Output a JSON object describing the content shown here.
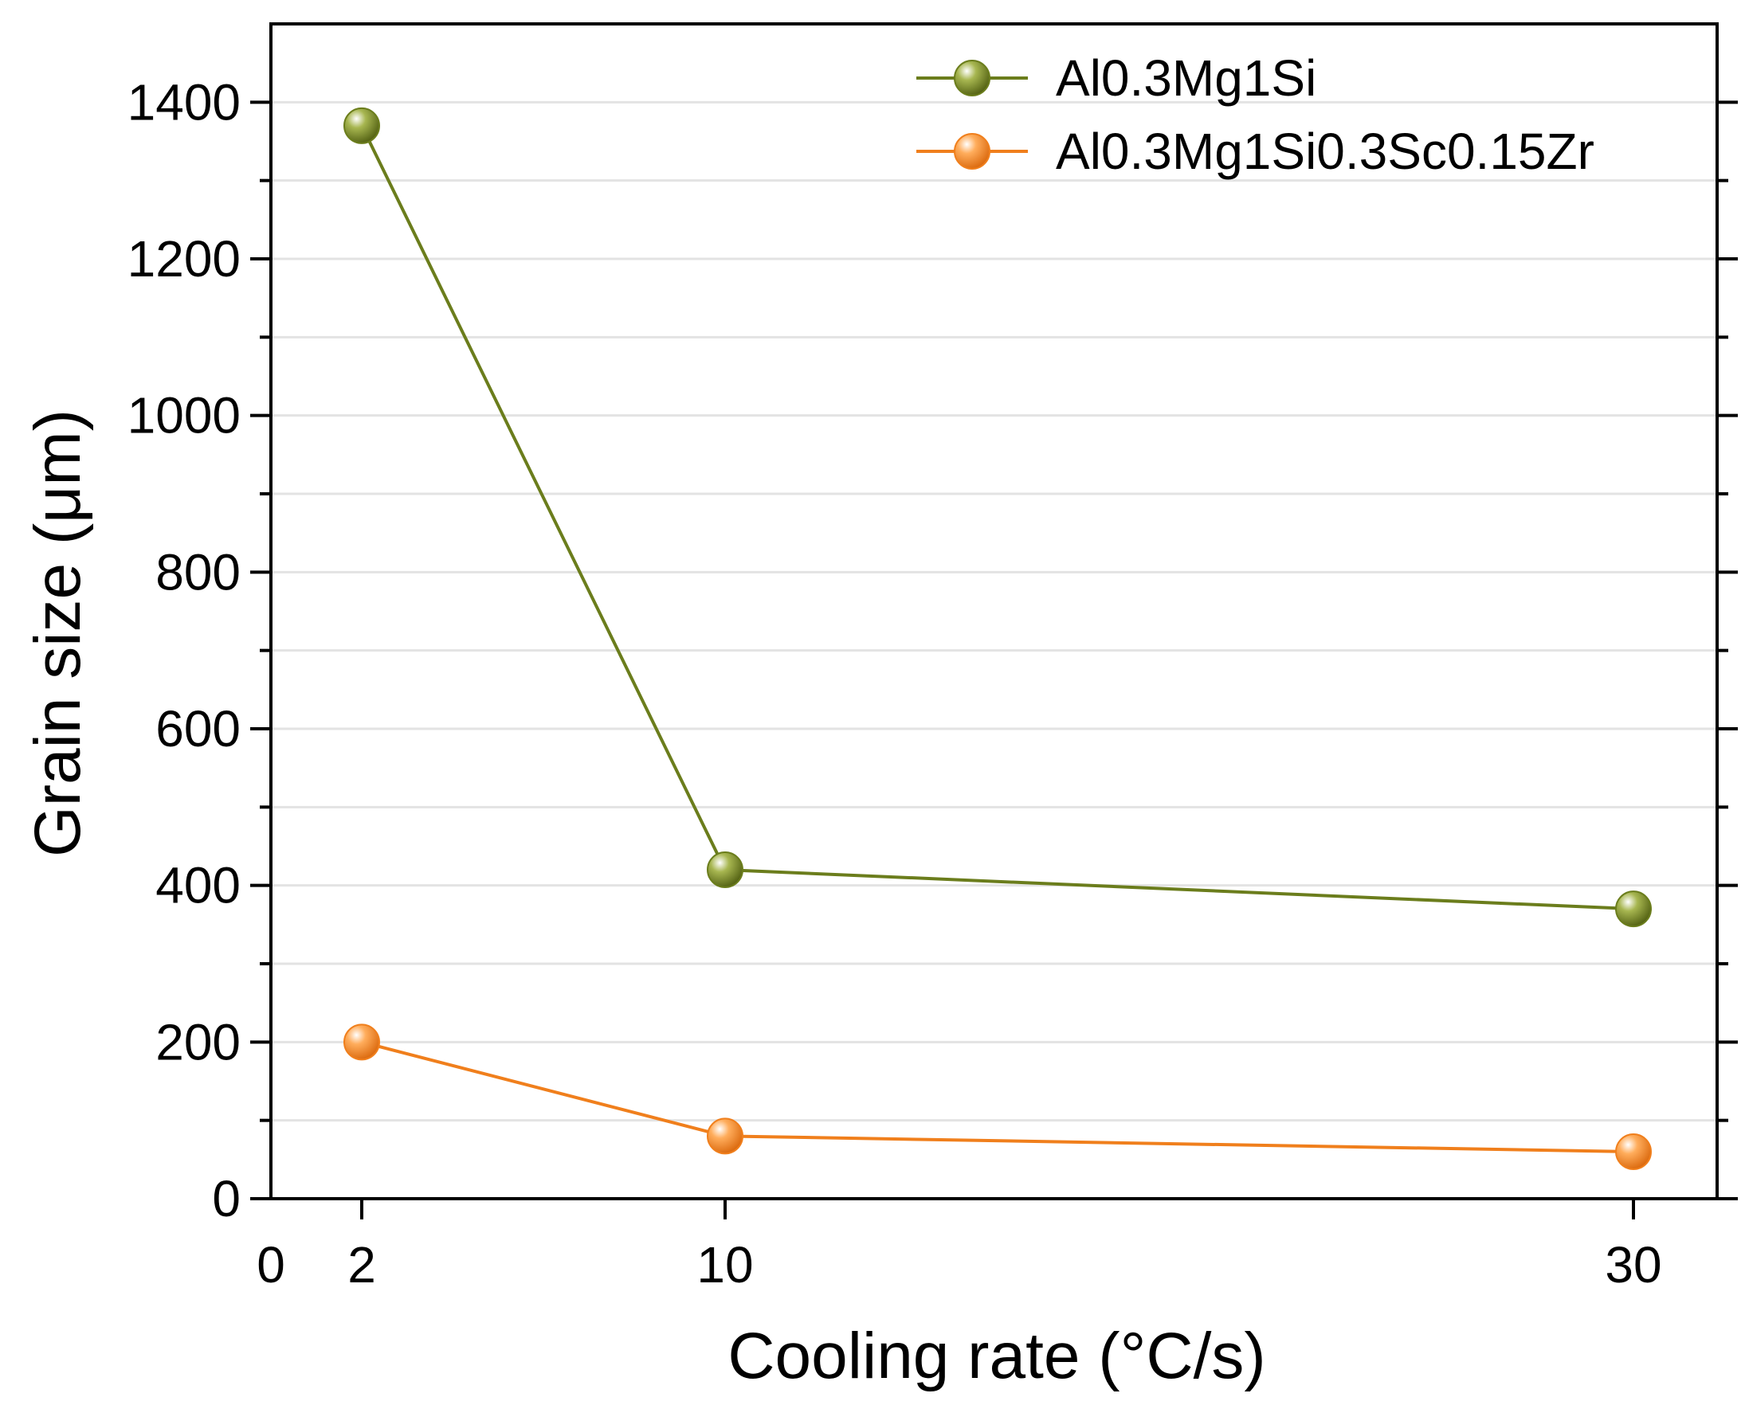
{
  "chart_data": {
    "type": "line",
    "title": "",
    "xlabel": "Cooling rate (°C/s)",
    "ylabel": "Grain size (μm)",
    "x_ticks": [
      0,
      2,
      10,
      30
    ],
    "x_tick_labels": [
      "0",
      "2",
      "10",
      "30"
    ],
    "y_ticks": [
      0,
      200,
      400,
      600,
      800,
      1000,
      1200,
      1400
    ],
    "y_tick_labels": [
      "0",
      "200",
      "400",
      "600",
      "800",
      "1000",
      "1200",
      "1400"
    ],
    "ylim": [
      0,
      1500
    ],
    "grid": "horizontal",
    "legend_position": "top-right",
    "series": [
      {
        "name": "Al0.3Mg1Si",
        "color": "#6b7d1c",
        "points": [
          {
            "x": 2,
            "y": 1370
          },
          {
            "x": 10,
            "y": 420
          },
          {
            "x": 30,
            "y": 370
          }
        ]
      },
      {
        "name": "Al0.3Mg1Si0.3Sc0.15Zr",
        "color": "#f07f1c",
        "points": [
          {
            "x": 2,
            "y": 200
          },
          {
            "x": 10,
            "y": 80
          },
          {
            "x": 30,
            "y": 60
          }
        ]
      }
    ]
  }
}
